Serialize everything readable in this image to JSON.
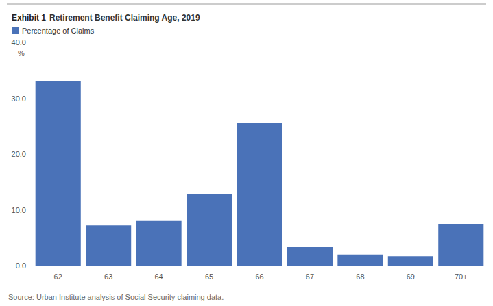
{
  "chart_data": {
    "type": "bar",
    "title_prefix": "Exhibit 1",
    "title": "Retirement Benefit Claiming Age, 2019",
    "categories": [
      "62",
      "63",
      "64",
      "65",
      "66",
      "67",
      "68",
      "69",
      "70+"
    ],
    "series": [
      {
        "name": "Percentage of Claims",
        "color": "#4a72b8",
        "values": [
          33.1,
          7.2,
          8.0,
          12.8,
          25.6,
          3.3,
          2.0,
          1.7,
          7.5
        ]
      }
    ],
    "ylim": [
      0,
      40
    ],
    "yticks": [
      {
        "value": 0,
        "label": "0.0"
      },
      {
        "value": 10,
        "label": "10.0"
      },
      {
        "value": 20,
        "label": "20.0"
      },
      {
        "value": 30,
        "label": "30.0"
      },
      {
        "value": 40,
        "label": "40.0"
      }
    ],
    "y_unit_label": "%",
    "source": "Source: Urban Institute analysis of Social Security claiming data.",
    "legend": "top-left",
    "grid": false
  }
}
